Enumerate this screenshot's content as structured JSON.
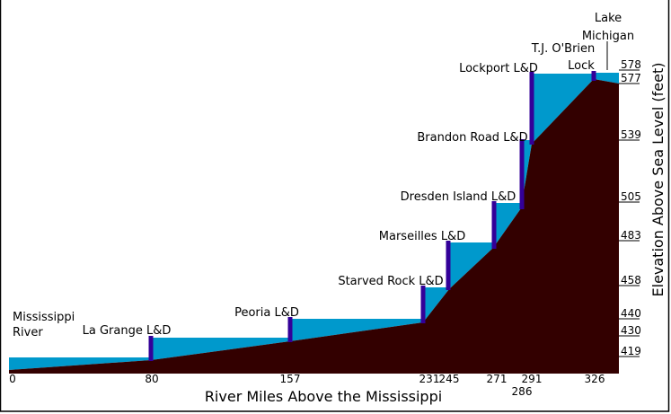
{
  "colors": {
    "water": "#0099cc",
    "bed": "#330000",
    "lock": "#330099",
    "border": "#000000"
  },
  "x_axis": {
    "title": "River Miles Above the Mississippi",
    "ticks": [
      "0",
      "80",
      "157",
      "231",
      "245",
      "271",
      "286",
      "291",
      "326"
    ]
  },
  "y_axis": {
    "title": "Elevation Above Sea Level (feet)",
    "ticks": [
      "578",
      "577",
      "539",
      "505",
      "483",
      "458",
      "440",
      "430",
      "419"
    ]
  },
  "labels": {
    "mississippi_line1": "Mississippi",
    "mississippi_line2": "River",
    "lake_line1": "Lake",
    "lake_line2": "Michigan"
  },
  "locks": [
    {
      "name": "La Grange L&D",
      "mile": 80
    },
    {
      "name": "Peoria L&D",
      "mile": 157
    },
    {
      "name": "Starved Rock L&D",
      "mile": 231
    },
    {
      "name": "Marseilles L&D",
      "mile": 245
    },
    {
      "name": "Dresden Island L&D",
      "mile": 271
    },
    {
      "name": "Brandon Road L&D",
      "mile": 286
    },
    {
      "name": "Lockport L&D",
      "mile": 291
    },
    {
      "name": "T.J. O'Brien",
      "name_line2": "Lock",
      "mile": 326
    }
  ]
}
